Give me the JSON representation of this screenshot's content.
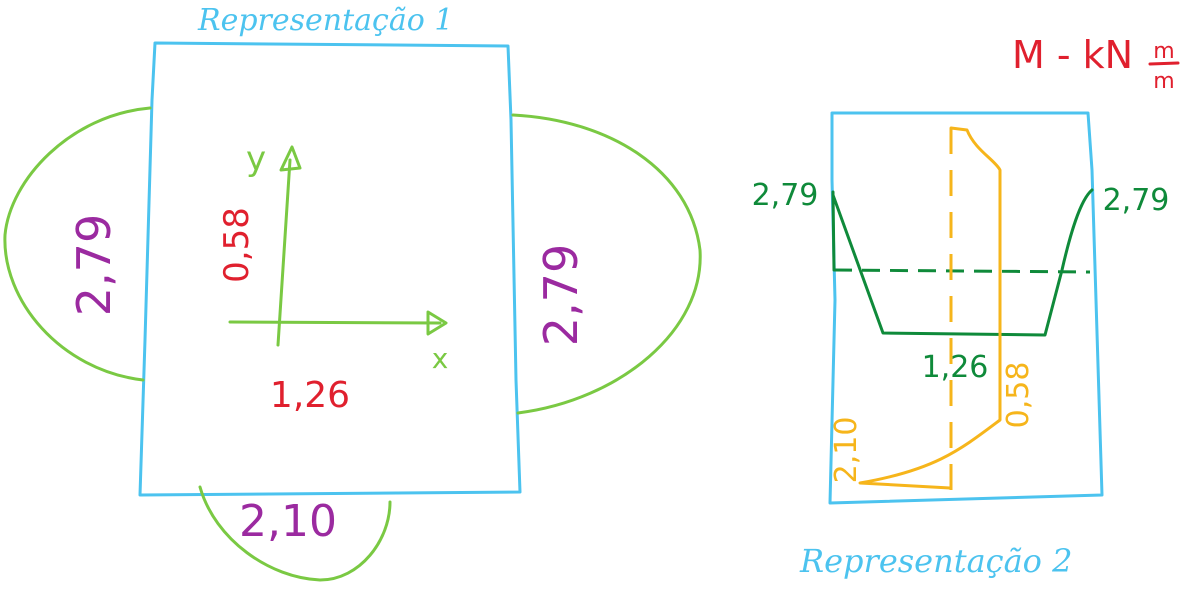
{
  "colors": {
    "slab": "#4cc3ef",
    "bulge": "#7ac943",
    "value_purple": "#9b2aa0",
    "value_red": "#e0202e",
    "axis": "#7ac943",
    "moment_green": "#0f8a3a",
    "moment_orange": "#f6b51b"
  },
  "rep1": {
    "title": "Representação 1",
    "value_left": "2,79",
    "value_right": "2,79",
    "value_bottom": "2,10",
    "axis_x": "x",
    "axis_y": "y",
    "value_x": "1,26",
    "value_y": "0,58"
  },
  "rep2": {
    "title": "Representação 2",
    "green_left": "2,79",
    "green_right": "2,79",
    "green_bottom": "1,26",
    "orange_top": "0,58",
    "orange_bottom": "2,10"
  },
  "units": {
    "prefix": "M - kN",
    "num": "m",
    "den": "m"
  }
}
